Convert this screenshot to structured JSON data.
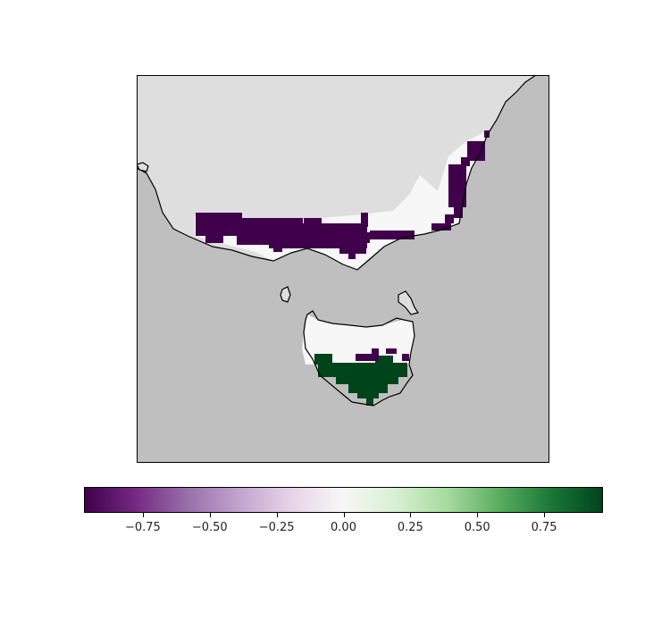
{
  "map": {
    "region": "south-eastern Australia and Tasmania",
    "ocean_color": "#bfbfbf",
    "land_outside_data_color": "#dedede",
    "coastline_color": "#000000",
    "regions": [
      {
        "name": "mainland-northern-strip",
        "value": -0.95
      },
      {
        "name": "mainland-eastern-strip",
        "value": -0.95
      },
      {
        "name": "mainland-coastal-zone",
        "value": 0.0
      },
      {
        "name": "tasmania-north",
        "value": 0.0
      },
      {
        "name": "tasmania-south",
        "value": 0.95
      }
    ]
  },
  "colorbar": {
    "colormap": "PRGn",
    "range": [
      -0.97,
      0.97
    ],
    "colors": [
      "#40004b",
      "#762a83",
      "#9970ab",
      "#c2a5cf",
      "#e7d4e8",
      "#f7f7f7",
      "#d9f0d3",
      "#a6dba0",
      "#5aae61",
      "#1b7837",
      "#00441b"
    ],
    "ticks": [
      {
        "value": -0.75,
        "label": "−0.75"
      },
      {
        "value": -0.5,
        "label": "−0.50"
      },
      {
        "value": -0.25,
        "label": "−0.25"
      },
      {
        "value": 0.0,
        "label": "0.00"
      },
      {
        "value": 0.25,
        "label": "0.25"
      },
      {
        "value": 0.5,
        "label": "0.50"
      },
      {
        "value": 0.75,
        "label": "0.75"
      }
    ]
  }
}
